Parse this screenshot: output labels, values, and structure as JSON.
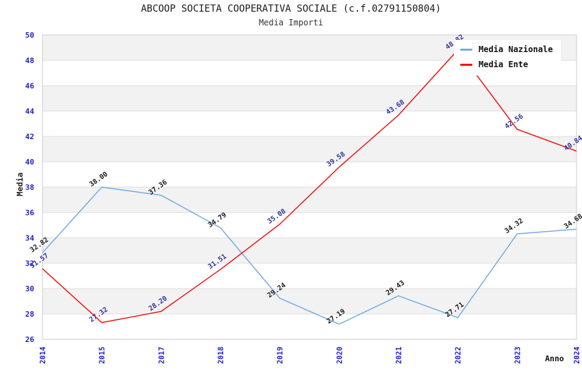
{
  "chart_data": {
    "type": "line",
    "title": "ABCOOP SOCIETA COOPERATIVA SOCIALE (c.f.02791150804)",
    "subtitle": "Media Importi",
    "xlabel": "Anno",
    "ylabel": "Media",
    "categories": [
      "2014",
      "2015",
      "2017",
      "2018",
      "2019",
      "2020",
      "2021",
      "2022",
      "2023",
      "2024"
    ],
    "ylim": [
      26,
      50
    ],
    "ytick_step": 2,
    "grid": true,
    "alternating_bands": true,
    "legend_position": "top-right",
    "series": [
      {
        "name": "Media Nazionale",
        "color": "#74abe2",
        "label_color": "#1a1a1a",
        "values": [
          32.82,
          38.0,
          37.36,
          34.79,
          29.24,
          27.19,
          29.43,
          27.71,
          34.32,
          34.68
        ]
      },
      {
        "name": "Media Ente",
        "color": "#ee1111",
        "label_color": "#333399",
        "values": [
          31.57,
          27.32,
          28.2,
          31.51,
          35.08,
          39.58,
          43.68,
          48.82,
          42.56,
          40.84
        ]
      }
    ],
    "colors": {
      "tick_label": "#2323cc",
      "grid": "#dcdcdc",
      "band": "#f2f2f2",
      "plot_border": "#cccccc",
      "title": "#1a1a1a"
    }
  }
}
